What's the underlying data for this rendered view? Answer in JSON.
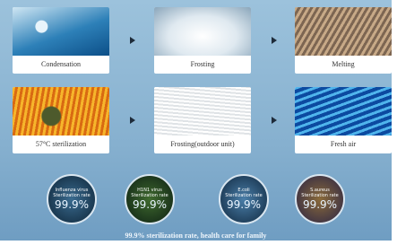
{
  "steps": [
    {
      "label": "Condensation"
    },
    {
      "label": "Frosting"
    },
    {
      "label": "Melting"
    },
    {
      "label": "57°C sterilization"
    },
    {
      "label": "Frosting(outdoor unit)"
    },
    {
      "label": "Fresh air"
    }
  ],
  "badges": [
    {
      "name": "Influenza virus",
      "rate_label": "Sterilization rate",
      "rate": "99.9%"
    },
    {
      "name": "H1N1 virus",
      "rate_label": "Sterilization rate",
      "rate": "99.9%"
    },
    {
      "name": "E.coli",
      "rate_label": "Sterilization rate",
      "rate": "99.9%"
    },
    {
      "name": "S.aureus",
      "rate_label": "Sterilization rate",
      "rate": "99.9%"
    }
  ],
  "footer": {
    "caption": "99.9% sterilization rate, health care for family"
  }
}
